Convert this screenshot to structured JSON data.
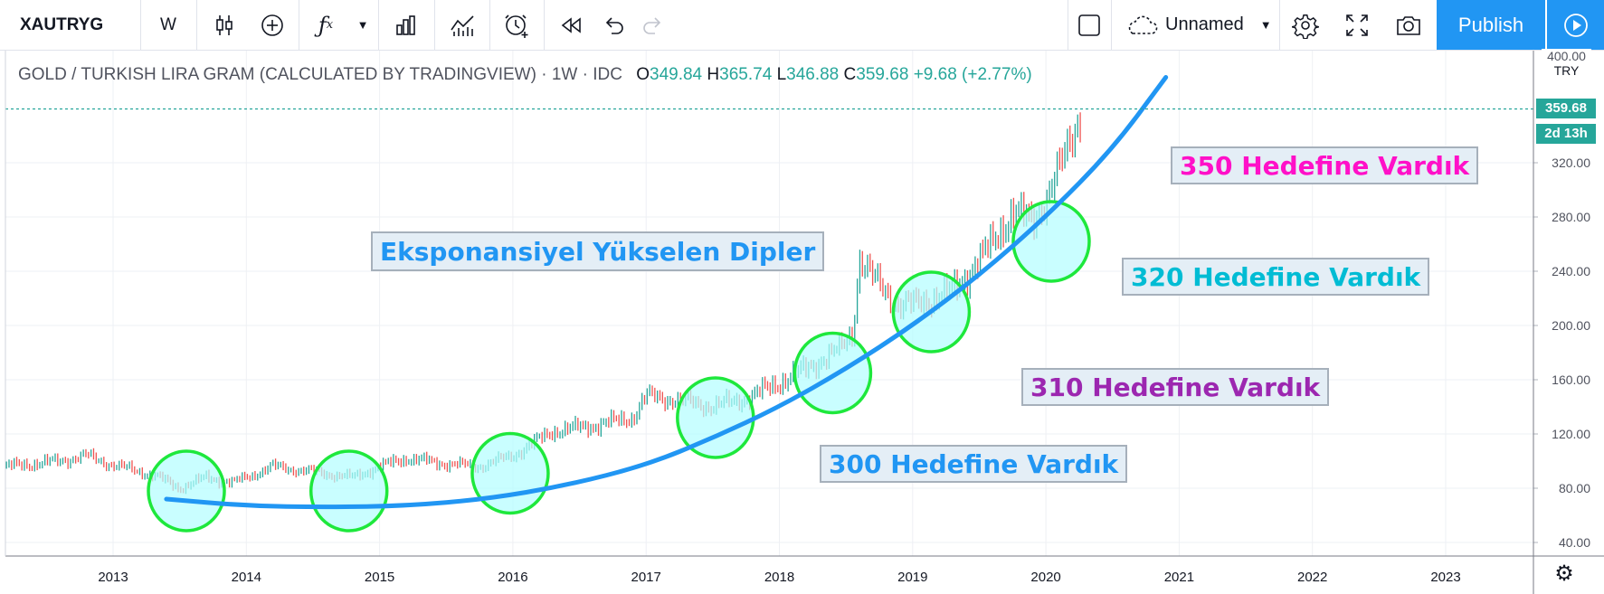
{
  "toolbar": {
    "symbol": "XAUTRYG",
    "interval": "W",
    "layout_name": "Unnamed",
    "publish_label": "Publish",
    "icons": [
      "candles-icon",
      "add-indicator-icon",
      "fx-icon",
      "chevron-down-icon",
      "bars-compare-icon",
      "indicators-icon",
      "alert-icon",
      "replay-icon",
      "undo-icon",
      "redo-icon",
      "square-icon",
      "cloud-icon",
      "gear-icon",
      "fullscreen-icon",
      "camera-icon",
      "play-icon"
    ]
  },
  "legend": {
    "title": "GOLD / TURKISH LIRA GRAM (CALCULATED BY TRADINGVIEW)",
    "sep1": "·",
    "interval": "1W",
    "sep2": "·",
    "source": "IDC",
    "o_label": "O",
    "o_value": "349.84",
    "h_label": "H",
    "h_value": "365.74",
    "l_label": "L",
    "l_value": "346.88",
    "c_label": "C",
    "c_value": "359.68",
    "change": "+9.68 (+2.77%)"
  },
  "price_axis": {
    "top_label": "400.00",
    "currency": "TRY",
    "last_price": "359.68",
    "countdown": "2d 13h",
    "colors": {
      "last_price_bg": "#26a69a"
    }
  },
  "annotations": {
    "main": "Eksponansiyel Yükselen Dipler",
    "t300": "300 Hedefine Vardık",
    "t310": "310 Hedefine Vardık",
    "t320": "320 Hedefine Vardık",
    "t350": "350 Hedefine Vardık",
    "colors": {
      "main": "#2196f3",
      "t300": "#2196f3",
      "t310": "#9c27b0",
      "t320": "#00bcd4",
      "t350": "#ff10c8",
      "circles": "#1ee83c",
      "circle_fill": "#b2fdff",
      "curve": "#2196f3"
    }
  },
  "chart_data": {
    "type": "candlestick",
    "timeframe": "weekly",
    "x_ticks": [
      "2013",
      "2014",
      "2015",
      "2016",
      "2017",
      "2018",
      "2019",
      "2020",
      "2021",
      "2022",
      "2023"
    ],
    "y_ticks": [
      40,
      80,
      120,
      160,
      200,
      240,
      280,
      320
    ],
    "ylim": [
      30,
      405
    ],
    "xlim_year": [
      2012.2,
      2023.6
    ],
    "last_price": 359.68,
    "price_path": [
      {
        "year": 2012.2,
        "price": 96
      },
      {
        "year": 2012.6,
        "price": 100
      },
      {
        "year": 2012.8,
        "price": 104
      },
      {
        "year": 2013.0,
        "price": 97
      },
      {
        "year": 2013.3,
        "price": 90
      },
      {
        "year": 2013.5,
        "price": 80
      },
      {
        "year": 2013.7,
        "price": 88
      },
      {
        "year": 2013.9,
        "price": 84
      },
      {
        "year": 2014.2,
        "price": 96
      },
      {
        "year": 2014.5,
        "price": 92
      },
      {
        "year": 2014.8,
        "price": 88
      },
      {
        "year": 2015.0,
        "price": 96
      },
      {
        "year": 2015.2,
        "price": 102
      },
      {
        "year": 2015.5,
        "price": 98
      },
      {
        "year": 2015.75,
        "price": 96
      },
      {
        "year": 2016.0,
        "price": 104
      },
      {
        "year": 2016.3,
        "price": 122
      },
      {
        "year": 2016.6,
        "price": 126
      },
      {
        "year": 2016.9,
        "price": 132
      },
      {
        "year": 2017.0,
        "price": 148
      },
      {
        "year": 2017.3,
        "price": 144
      },
      {
        "year": 2017.5,
        "price": 140
      },
      {
        "year": 2017.8,
        "price": 148
      },
      {
        "year": 2018.0,
        "price": 158
      },
      {
        "year": 2018.2,
        "price": 168
      },
      {
        "year": 2018.45,
        "price": 182
      },
      {
        "year": 2018.55,
        "price": 195
      },
      {
        "year": 2018.6,
        "price": 250
      },
      {
        "year": 2018.7,
        "price": 235
      },
      {
        "year": 2018.9,
        "price": 215
      },
      {
        "year": 2019.0,
        "price": 215
      },
      {
        "year": 2019.3,
        "price": 225
      },
      {
        "year": 2019.6,
        "price": 260
      },
      {
        "year": 2019.75,
        "price": 285
      },
      {
        "year": 2019.9,
        "price": 275
      },
      {
        "year": 2020.0,
        "price": 295
      },
      {
        "year": 2020.15,
        "price": 325
      },
      {
        "year": 2020.27,
        "price": 359.68
      }
    ],
    "trend_curve": {
      "description": "exponential rising lows",
      "points": [
        {
          "year": 2013.4,
          "price": 72
        },
        {
          "year": 2014.0,
          "price": 67
        },
        {
          "year": 2014.6,
          "price": 66
        },
        {
          "year": 2015.2,
          "price": 67
        },
        {
          "year": 2015.8,
          "price": 72
        },
        {
          "year": 2016.4,
          "price": 82
        },
        {
          "year": 2017.0,
          "price": 97
        },
        {
          "year": 2017.5,
          "price": 117
        },
        {
          "year": 2018.0,
          "price": 140
        },
        {
          "year": 2018.5,
          "price": 168
        },
        {
          "year": 2019.0,
          "price": 200
        },
        {
          "year": 2019.5,
          "price": 237
        },
        {
          "year": 2020.0,
          "price": 280
        },
        {
          "year": 2020.5,
          "price": 330
        },
        {
          "year": 2020.9,
          "price": 383
        }
      ]
    },
    "circled_lows": [
      {
        "year": 2013.55,
        "price": 78
      },
      {
        "year": 2014.77,
        "price": 78
      },
      {
        "year": 2015.98,
        "price": 91
      },
      {
        "year": 2017.52,
        "price": 132
      },
      {
        "year": 2018.4,
        "price": 165
      },
      {
        "year": 2019.14,
        "price": 210
      },
      {
        "year": 2020.04,
        "price": 262
      }
    ]
  }
}
